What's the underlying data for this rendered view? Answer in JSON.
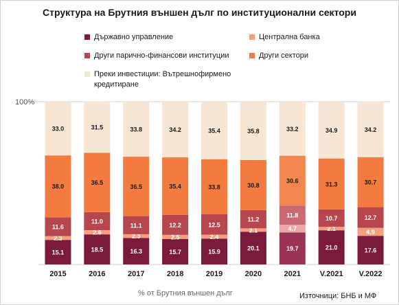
{
  "colors": {
    "background": "#ffffff",
    "gridline": "#cfcfcf",
    "axis_text": "#1a1a1a",
    "label_light": "#ffffff",
    "label_dark": "#1a1a1a"
  },
  "chart_data": {
    "type": "bar",
    "stacked": true,
    "title": "Структура на Брутния външен дълг по институционални сектори",
    "categories": [
      "2015",
      "2016",
      "2017",
      "2018",
      "2019",
      "2020",
      "2021",
      "V.2021",
      "V.2022"
    ],
    "ylim": [
      0,
      100
    ],
    "ytick_label": "100%",
    "legend": "top",
    "xlabel": "% от Брутния външен дълг",
    "source": "Източници: БНБ и МФ",
    "series": [
      {
        "name": "Държавно управление",
        "color": "#7b1a3a",
        "label_color": "#ffffff",
        "values": [
          15.1,
          18.5,
          16.3,
          15.7,
          15.9,
          20.1,
          19.7,
          21.0,
          17.6
        ]
      },
      {
        "name": "Централна банка",
        "color": "#f4a080",
        "label_color": "#ffffff",
        "values": [
          2.3,
          2.6,
          2.3,
          2.5,
          2.4,
          2.1,
          4.7,
          2.1,
          4.9
        ]
      },
      {
        "name": "Други парично-финансови институции",
        "color": "#b7464f",
        "label_color": "#ffffff",
        "values": [
          11.6,
          11.0,
          11.1,
          12.2,
          12.5,
          11.2,
          11.8,
          10.7,
          12.7
        ]
      },
      {
        "name": "Други сектори",
        "color": "#f47b3f",
        "label_color": "#1a1a1a",
        "values": [
          38.0,
          36.5,
          36.5,
          35.4,
          33.8,
          30.8,
          30.6,
          31.3,
          30.7
        ]
      },
      {
        "name": "Преки инвестиции: Вътрешнофирмено кредитиране",
        "color": "#f7e6d3",
        "label_color": "#1a1a1a",
        "values": [
          33.0,
          31.5,
          33.8,
          34.2,
          35.4,
          35.8,
          33.2,
          34.9,
          34.2
        ]
      }
    ],
    "highlight_category_colors": {
      "2021": [
        "#9b3358",
        "#e8a8a8",
        "#c96a73",
        "#f4864f",
        "#f7e6d3"
      ]
    }
  }
}
